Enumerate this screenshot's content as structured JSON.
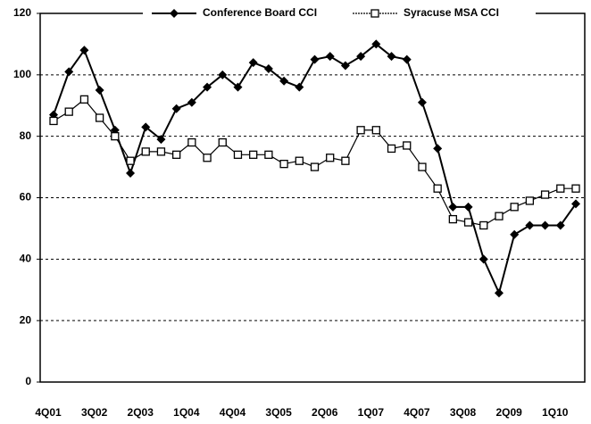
{
  "chart_data": {
    "type": "line",
    "categories": [
      "4Q01",
      null,
      null,
      "3Q02",
      null,
      null,
      "2Q03",
      null,
      null,
      "1Q04",
      null,
      null,
      "4Q04",
      null,
      null,
      "3Q05",
      null,
      null,
      "2Q06",
      null,
      null,
      "1Q07",
      null,
      null,
      "4Q07",
      null,
      null,
      "3Q08",
      null,
      null,
      "2Q09",
      null,
      null,
      "1Q10",
      null
    ],
    "series": [
      {
        "name": "Conference Board CCI",
        "color": "#000000",
        "marker": "diamond",
        "values": [
          87,
          101,
          108,
          95,
          82,
          68,
          83,
          79,
          89,
          91,
          96,
          100,
          96,
          104,
          102,
          98,
          96,
          105,
          106,
          103,
          106,
          110,
          106,
          105,
          91,
          76,
          57,
          57,
          40,
          29,
          48,
          51,
          51,
          51,
          58
        ]
      },
      {
        "name": "Syracuse MSA CCI",
        "color": "#000000",
        "marker": "square",
        "values": [
          85,
          88,
          92,
          86,
          80,
          72,
          75,
          75,
          74,
          78,
          73,
          78,
          74,
          74,
          74,
          71,
          72,
          70,
          73,
          72,
          82,
          82,
          76,
          77,
          70,
          63,
          53,
          52,
          51,
          54,
          57,
          59,
          61,
          63,
          63
        ]
      }
    ],
    "ylim": [
      0,
      120
    ],
    "yticks": [
      0,
      20,
      40,
      60,
      80,
      100,
      120
    ],
    "grid": true,
    "legend": "top"
  }
}
